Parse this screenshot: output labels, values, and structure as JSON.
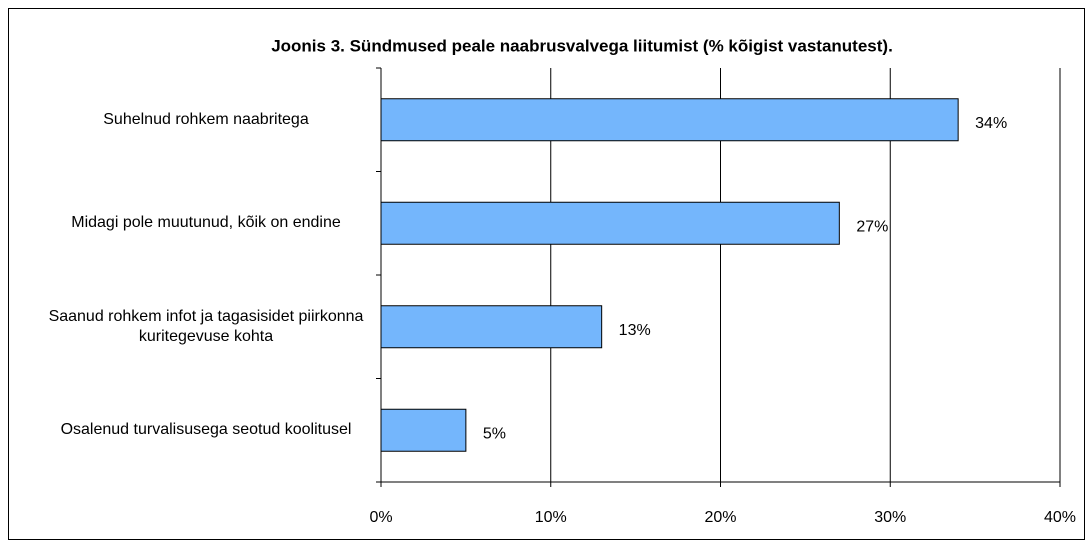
{
  "chart_data": {
    "type": "bar",
    "orientation": "horizontal",
    "title": "Joonis 3. Sündmused peale naabrusvalvega liitumist (% kõigist vastanutest).",
    "categories": [
      "Suhelnud rohkem naabritega",
      "Midagi pole muutunud,  kõik on endine",
      "Saanud rohkem infot ja tagasisidet piirkonna kuritegevuse kohta",
      "Osalenud turvalisusega seotud koolitusel"
    ],
    "values": [
      34,
      27,
      13,
      5
    ],
    "value_labels": [
      "34%",
      "27%",
      "13%",
      "5%"
    ],
    "color": "#74b6fc",
    "xlim": [
      0,
      40
    ],
    "xticks": [
      {
        "value": 0,
        "label": "0%"
      },
      {
        "value": 10,
        "label": "10%"
      },
      {
        "value": 20,
        "label": "20%"
      },
      {
        "value": 30,
        "label": "30%"
      },
      {
        "value": 40,
        "label": "40%"
      }
    ],
    "grid": true
  }
}
